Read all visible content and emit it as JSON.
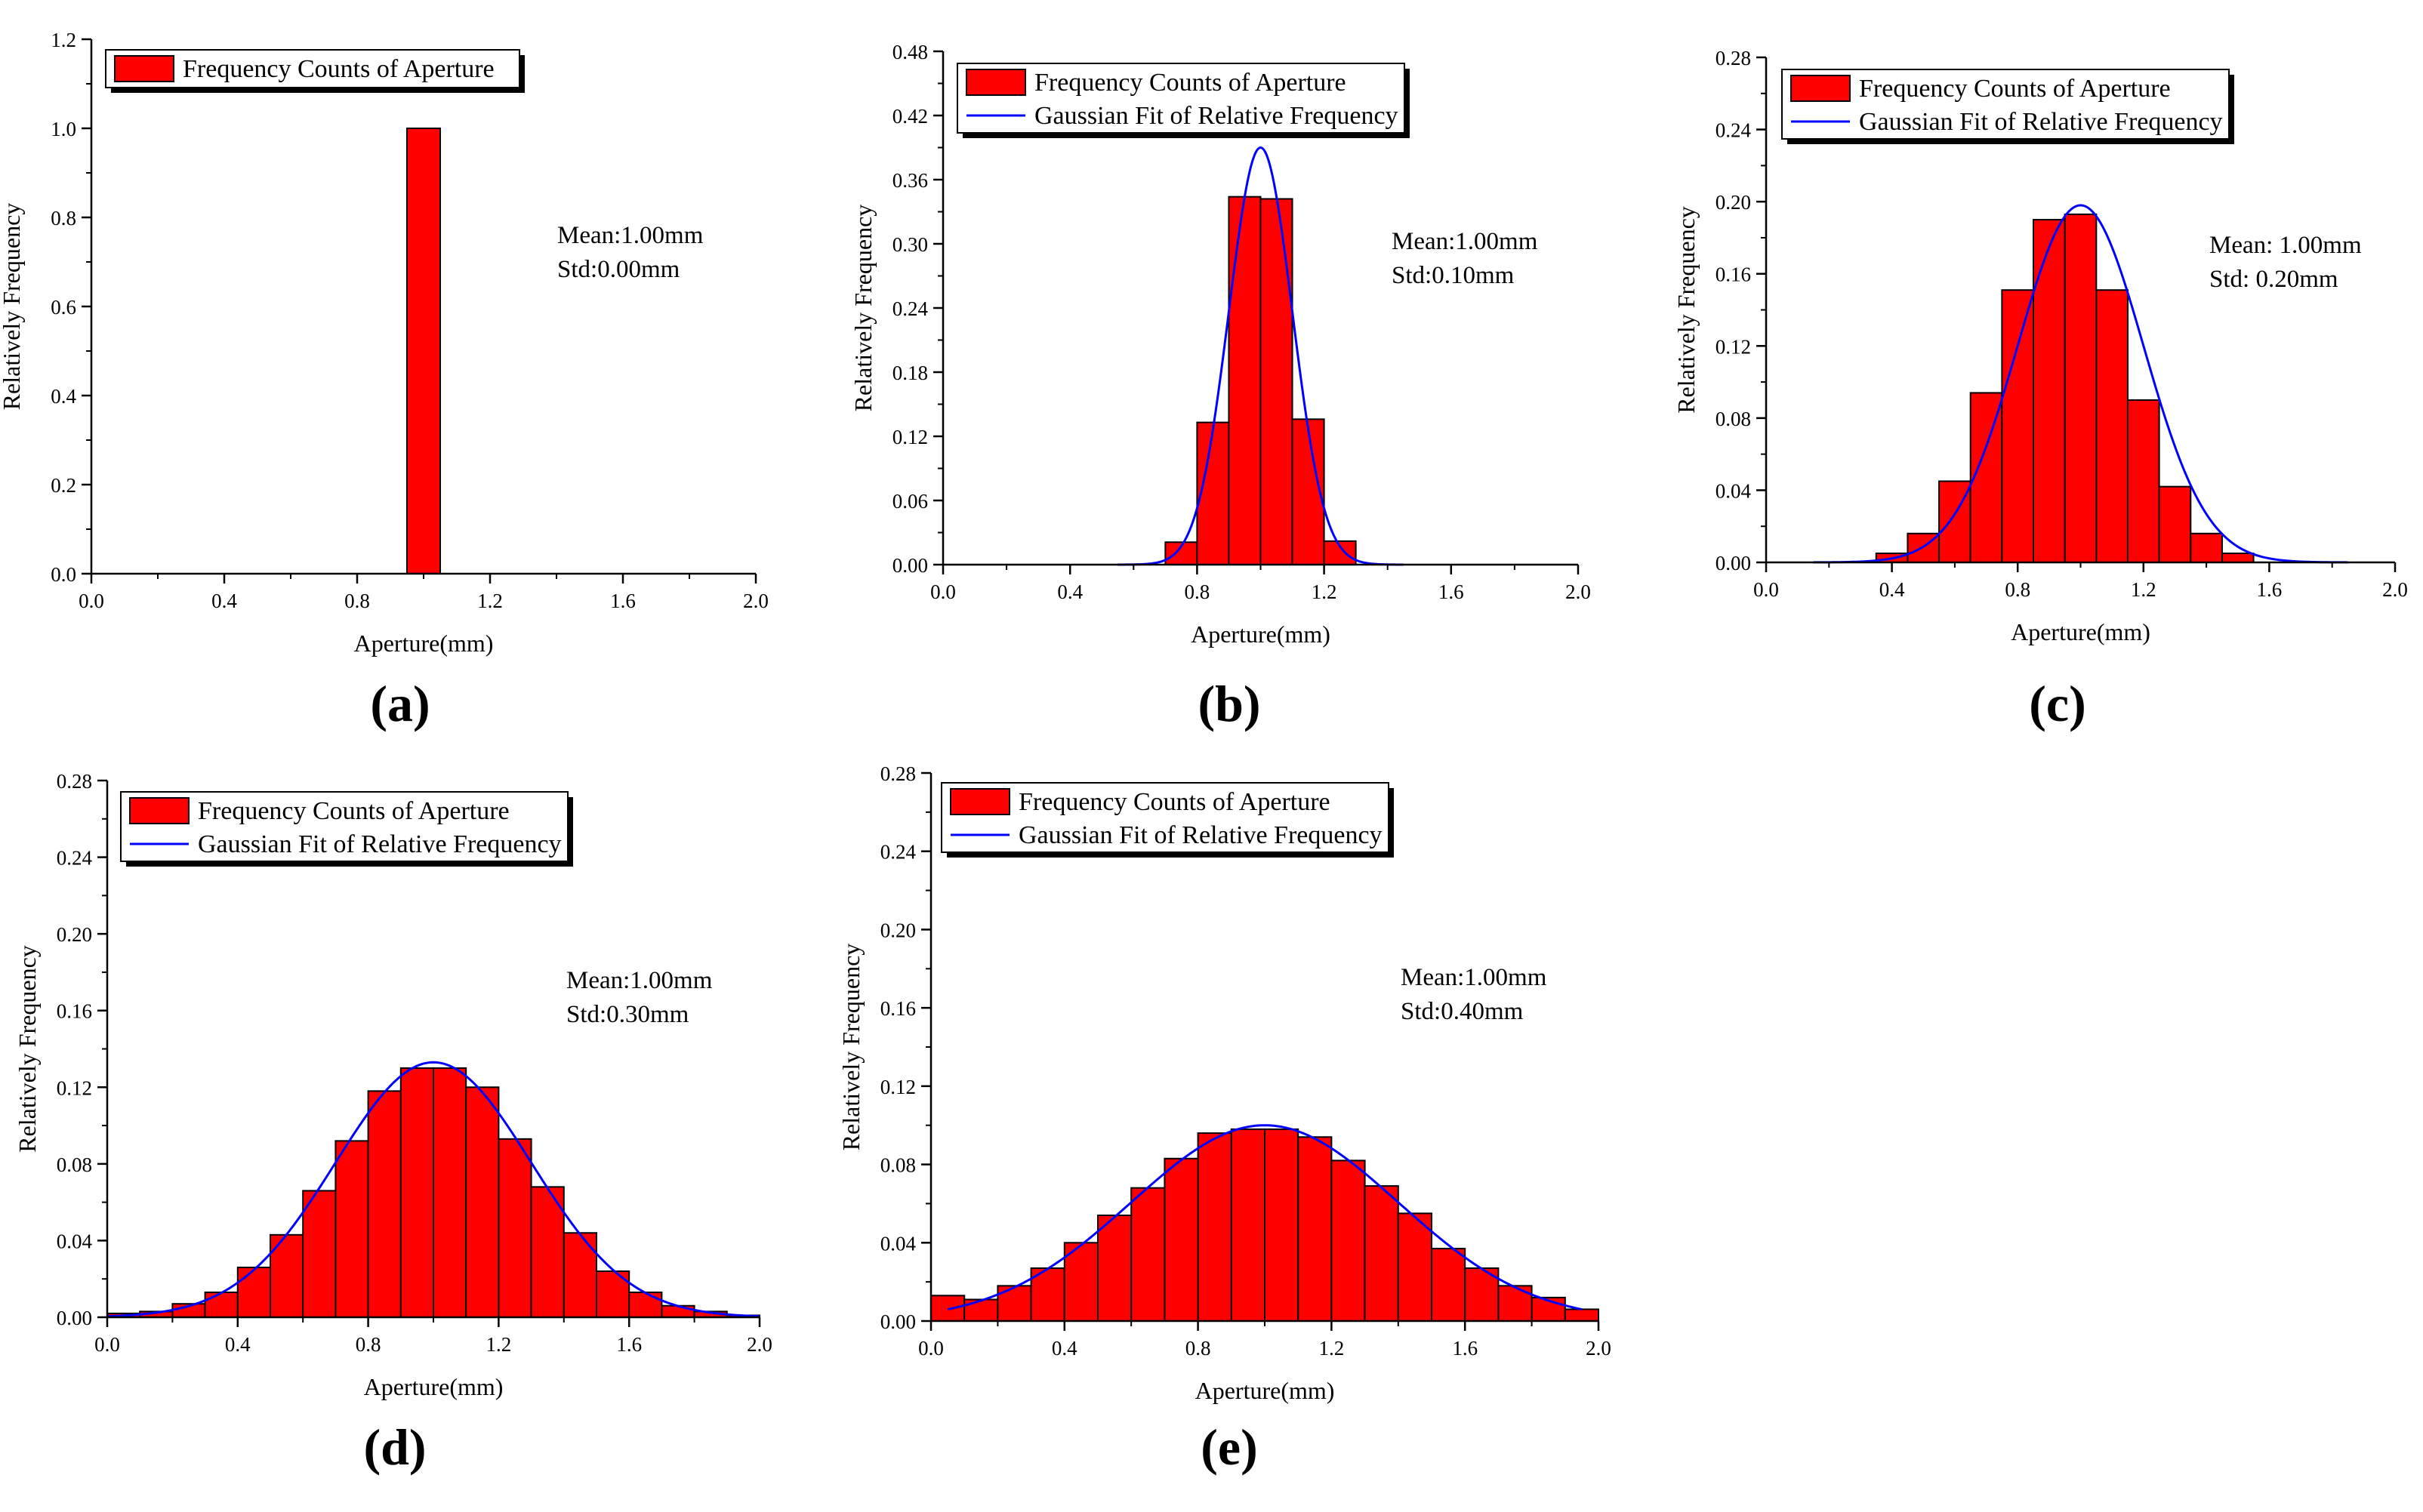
{
  "colors": {
    "bar_fill": "#ff0000",
    "bar_edge": "#000000",
    "fit_line": "#0000ff",
    "axis": "#000000"
  },
  "chart_data": [
    {
      "panel": "(a)",
      "type": "bar",
      "xlabel": "Aperture(mm)",
      "ylabel": "Relatively Frequency",
      "xlim": [
        0,
        2.0
      ],
      "ylim": [
        0,
        1.2
      ],
      "xticks": [
        "0.0",
        "0.4",
        "0.8",
        "1.2",
        "1.6",
        "2.0"
      ],
      "yticks": [
        "0.0",
        "0.2",
        "0.4",
        "0.6",
        "0.8",
        "1.0",
        "1.2"
      ],
      "bin_width": 0.1,
      "bins": [
        1.0
      ],
      "values": [
        1.0
      ],
      "legend": [
        "Frequency Counts of Aperture"
      ],
      "annotations": [
        "Mean:1.00mm",
        "Std:0.00mm"
      ],
      "fit": null
    },
    {
      "panel": "(b)",
      "type": "bar",
      "xlabel": "Aperture(mm)",
      "ylabel": "Relatively Frequency",
      "xlim": [
        0,
        2.0
      ],
      "ylim": [
        0,
        0.48
      ],
      "xticks": [
        "0.0",
        "0.4",
        "0.8",
        "1.2",
        "1.6",
        "2.0"
      ],
      "yticks": [
        "0.00",
        "0.06",
        "0.12",
        "0.18",
        "0.24",
        "0.30",
        "0.36",
        "0.42",
        "0.48"
      ],
      "bin_width": 0.1,
      "bins": [
        0.75,
        0.85,
        0.95,
        1.05,
        1.15,
        1.25
      ],
      "values": [
        0.021,
        0.133,
        0.344,
        0.342,
        0.136,
        0.022
      ],
      "legend": [
        "Frequency Counts of Aperture",
        "Gaussian Fit of Relative Frequency"
      ],
      "annotations": [
        "Mean:1.00mm",
        "Std:0.10mm"
      ],
      "fit": {
        "mean": 1.0,
        "std": 0.1,
        "peak": 0.39,
        "x_range": [
          0.55,
          1.45
        ]
      }
    },
    {
      "panel": "(c)",
      "type": "bar",
      "xlabel": "Aperture(mm)",
      "ylabel": "Relatively Frequency",
      "xlim": [
        0,
        2.0
      ],
      "ylim": [
        0,
        0.28
      ],
      "xticks": [
        "0.0",
        "0.4",
        "0.8",
        "1.2",
        "1.6",
        "2.0"
      ],
      "yticks": [
        "0.00",
        "0.04",
        "0.08",
        "0.12",
        "0.16",
        "0.20",
        "0.24",
        "0.28"
      ],
      "bin_width": 0.1,
      "bins": [
        0.4,
        0.5,
        0.6,
        0.7,
        0.8,
        0.9,
        1.0,
        1.1,
        1.2,
        1.3,
        1.4,
        1.5
      ],
      "values": [
        0.005,
        0.016,
        0.045,
        0.094,
        0.151,
        0.19,
        0.193,
        0.151,
        0.09,
        0.042,
        0.016,
        0.005
      ],
      "legend": [
        "Frequency Counts of Aperture",
        "Gaussian Fit of Relative Frequency"
      ],
      "annotations": [
        "Mean: 1.00mm",
        "Std: 0.20mm"
      ],
      "fit": {
        "mean": 1.0,
        "std": 0.2,
        "peak": 0.198,
        "x_range": [
          0.15,
          1.85
        ]
      }
    },
    {
      "panel": "(d)",
      "type": "bar",
      "xlabel": "Aperture(mm)",
      "ylabel": "Relatively Frequency",
      "xlim": [
        0,
        2.0
      ],
      "ylim": [
        0,
        0.28
      ],
      "xticks": [
        "0.0",
        "0.4",
        "0.8",
        "1.2",
        "1.6",
        "2.0"
      ],
      "yticks": [
        "0.00",
        "0.04",
        "0.08",
        "0.12",
        "0.16",
        "0.20",
        "0.24",
        "0.28"
      ],
      "bin_width": 0.1,
      "bins": [
        0.05,
        0.15,
        0.25,
        0.35,
        0.45,
        0.55,
        0.65,
        0.75,
        0.85,
        0.95,
        1.05,
        1.15,
        1.25,
        1.35,
        1.45,
        1.55,
        1.65,
        1.75,
        1.85,
        1.95
      ],
      "values": [
        0.002,
        0.003,
        0.007,
        0.013,
        0.026,
        0.043,
        0.066,
        0.092,
        0.118,
        0.13,
        0.13,
        0.12,
        0.093,
        0.068,
        0.044,
        0.024,
        0.013,
        0.006,
        0.003,
        0.001
      ],
      "legend": [
        "Frequency Counts of Aperture",
        "Gaussian Fit of Relative Frequency"
      ],
      "annotations": [
        "Mean:1.00mm",
        "Std:0.30mm"
      ],
      "fit": {
        "mean": 1.0,
        "std": 0.3,
        "peak": 0.133,
        "x_range": [
          0.0,
          2.0
        ]
      }
    },
    {
      "panel": "(e)",
      "type": "bar",
      "xlabel": "Aperture(mm)",
      "ylabel": "Relatively Frequency",
      "xlim": [
        0,
        2.0
      ],
      "ylim": [
        0,
        0.28
      ],
      "xticks": [
        "0.0",
        "0.4",
        "0.8",
        "1.2",
        "1.6",
        "2.0"
      ],
      "yticks": [
        "0.00",
        "0.04",
        "0.08",
        "0.12",
        "0.16",
        "0.20",
        "0.24",
        "0.28"
      ],
      "bin_width": 0.1,
      "bins": [
        0.05,
        0.15,
        0.25,
        0.35,
        0.45,
        0.55,
        0.65,
        0.75,
        0.85,
        0.95,
        1.05,
        1.15,
        1.25,
        1.35,
        1.45,
        1.55,
        1.65,
        1.75,
        1.85,
        1.95
      ],
      "values": [
        0.013,
        0.011,
        0.018,
        0.027,
        0.04,
        0.054,
        0.068,
        0.083,
        0.096,
        0.098,
        0.098,
        0.094,
        0.082,
        0.069,
        0.055,
        0.037,
        0.027,
        0.018,
        0.012,
        0.006
      ],
      "legend": [
        "Frequency Counts of Aperture",
        "Gaussian Fit of Relative Frequency"
      ],
      "annotations": [
        "Mean:1.00mm",
        "Std:0.40mm"
      ],
      "fit": {
        "mean": 1.0,
        "std": 0.4,
        "peak": 0.1,
        "x_range": [
          0.05,
          1.95
        ]
      }
    }
  ]
}
